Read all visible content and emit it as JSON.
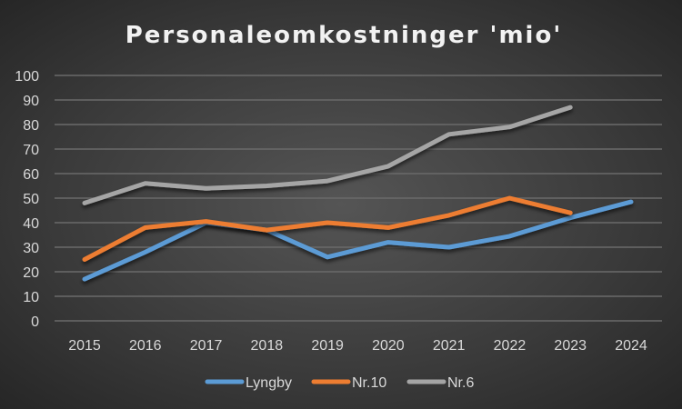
{
  "chart_data": {
    "type": "line",
    "title": "Personaleomkostninger 'mio'",
    "xlabel": "",
    "ylabel": "",
    "categories": [
      "2015",
      "2016",
      "2017",
      "2018",
      "2019",
      "2020",
      "2021",
      "2022",
      "2023",
      "2024"
    ],
    "ylim": [
      0,
      100
    ],
    "yticks": [
      "0",
      "10",
      "20",
      "30",
      "40",
      "50",
      "60",
      "70",
      "80",
      "90",
      "100"
    ],
    "grid": true,
    "legend": "bottom",
    "series": [
      {
        "name": "Lyngby",
        "color": "#5b9bd5",
        "values": [
          17,
          28,
          40,
          37,
          26,
          32,
          30,
          34.5,
          42,
          48.5
        ]
      },
      {
        "name": "Nr.10",
        "color": "#ed7d31",
        "values": [
          25,
          38,
          40.5,
          37,
          40,
          38,
          43,
          50,
          44,
          null
        ]
      },
      {
        "name": "Nr.6",
        "color": "#a5a5a5",
        "values": [
          48,
          56,
          54,
          55,
          57,
          63,
          76,
          79,
          87,
          null
        ]
      }
    ]
  }
}
